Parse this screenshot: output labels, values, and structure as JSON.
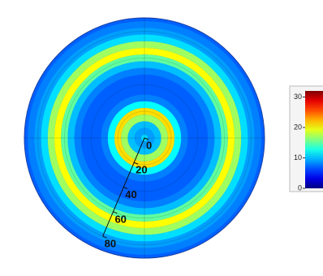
{
  "chart_data": {
    "type": "polar-heatmap",
    "x": [
      0,
      5,
      10,
      15,
      20,
      25,
      30,
      35,
      40,
      45,
      50,
      55,
      60,
      65,
      70,
      75,
      80,
      85,
      90
    ],
    "values": [
      11,
      9,
      10,
      17,
      21,
      12,
      8,
      7,
      7,
      7,
      8,
      10,
      15,
      20,
      17,
      11,
      9,
      8,
      7
    ],
    "xlim": [
      0,
      90
    ],
    "xticks": [
      0,
      20,
      40,
      60,
      80
    ],
    "clim": [
      0,
      32
    ],
    "cticks": [
      0,
      10,
      20,
      30
    ],
    "colormap": "jet",
    "grid": true
  }
}
